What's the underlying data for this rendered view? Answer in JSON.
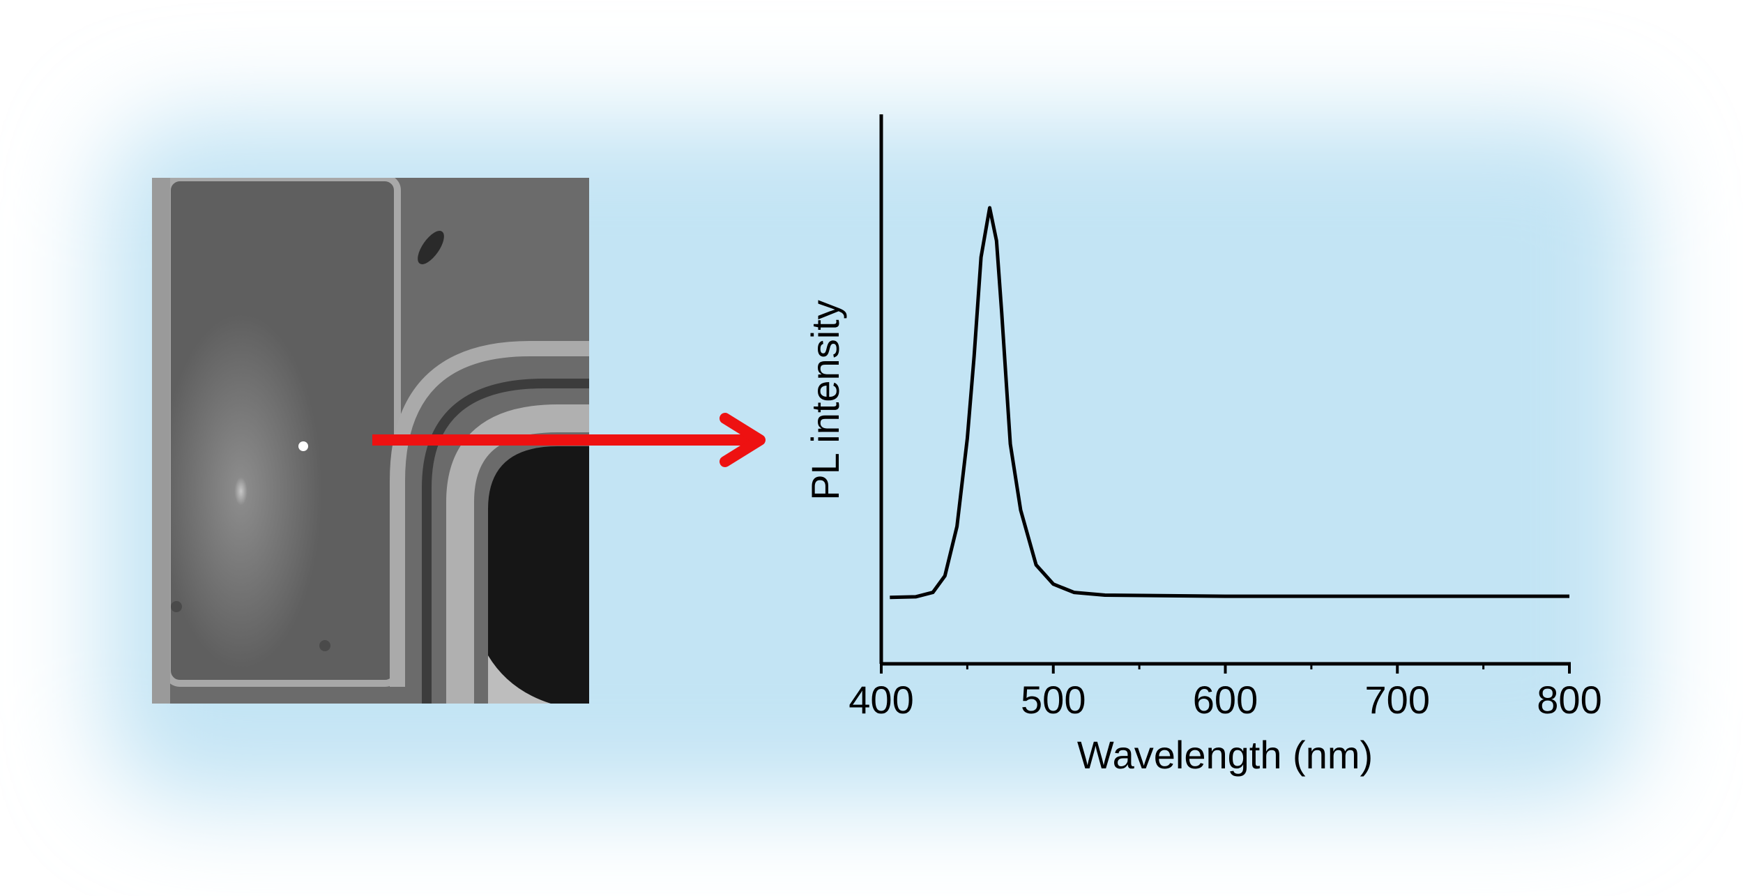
{
  "chart_data": {
    "type": "line",
    "xlabel": "Wavelength (nm)",
    "ylabel": "PL intensity",
    "xlim": [
      400,
      800
    ],
    "xticks": [
      400,
      500,
      600,
      700,
      800
    ],
    "xminorticks": [
      450,
      550,
      650,
      750
    ],
    "ylim": [
      0,
      1
    ],
    "series": [
      {
        "color": "#000000",
        "x": [
          405,
          420,
          430,
          437,
          444,
          450,
          454,
          458,
          463,
          467,
          470,
          475,
          481,
          490,
          500,
          512,
          530,
          600,
          800
        ],
        "values": [
          0.121,
          0.122,
          0.13,
          0.16,
          0.25,
          0.41,
          0.56,
          0.74,
          0.83,
          0.77,
          0.64,
          0.4,
          0.28,
          0.18,
          0.145,
          0.13,
          0.125,
          0.123,
          0.123
        ]
      }
    ]
  }
}
